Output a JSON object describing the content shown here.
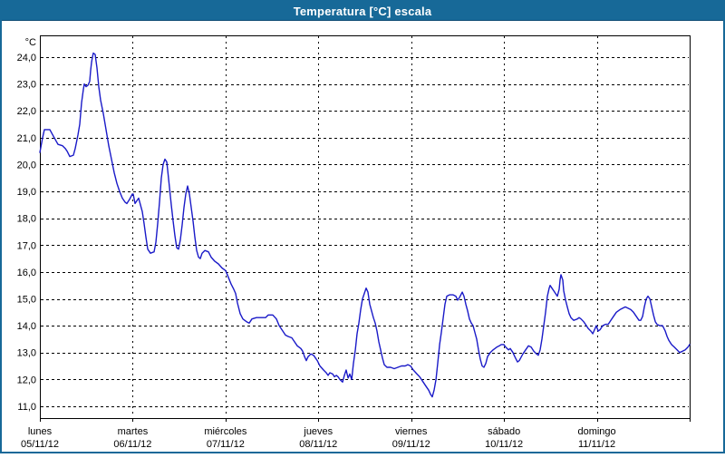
{
  "window": {
    "title": "Temperatura [°C] escala"
  },
  "colors": {
    "titlebar": "#176998",
    "frame": "#176998",
    "series_line": "#1a1ac8",
    "grid": "#000000",
    "plot_border": "#000000",
    "label_text": "#000000",
    "title_text": "#ffffff",
    "background": "#ffffff"
  },
  "chart_data": {
    "type": "line",
    "title": "Temperatura [°C] escala",
    "xlabel": "",
    "ylabel": "°C",
    "legend": "none",
    "grid": "dashed",
    "xlim_days": [
      0,
      7
    ],
    "ylim": [
      10.56,
      24.81
    ],
    "y_axis": {
      "unit": "°C",
      "values": [
        24,
        23,
        22,
        21,
        20,
        19,
        18,
        17,
        16,
        15,
        14,
        13,
        12,
        11
      ],
      "labels": [
        "24,0",
        "23,0",
        "22,0",
        "21,0",
        "20,0",
        "19,0",
        "18,0",
        "17,0",
        "16,0",
        "15,0",
        "14,0",
        "13,0",
        "12,0",
        "11,0"
      ]
    },
    "x_axis": {
      "days": [
        {
          "name": "lunes",
          "date": "05/11/12"
        },
        {
          "name": "martes",
          "date": "06/11/12"
        },
        {
          "name": "miércoles",
          "date": "07/11/12"
        },
        {
          "name": "jueves",
          "date": "08/11/12"
        },
        {
          "name": "viernes",
          "date": "09/11/12"
        },
        {
          "name": "sábado",
          "date": "10/11/12"
        },
        {
          "name": "domingo",
          "date": "11/11/12"
        }
      ]
    },
    "series": [
      {
        "name": "Temperatura",
        "x_unit": "days since lunes 05/11/12 00:00",
        "points": [
          [
            0,
            20.45
          ],
          [
            0.029,
            21.0
          ],
          [
            0.049,
            21.3
          ],
          [
            0.107,
            21.3
          ],
          [
            0.146,
            21.05
          ],
          [
            0.195,
            20.75
          ],
          [
            0.244,
            20.7
          ],
          [
            0.273,
            20.6
          ],
          [
            0.293,
            20.5
          ],
          [
            0.322,
            20.3
          ],
          [
            0.361,
            20.35
          ],
          [
            0.381,
            20.6
          ],
          [
            0.41,
            21.1
          ],
          [
            0.43,
            21.5
          ],
          [
            0.449,
            22.3
          ],
          [
            0.469,
            22.8
          ],
          [
            0.478,
            23.0
          ],
          [
            0.498,
            22.9
          ],
          [
            0.517,
            22.95
          ],
          [
            0.537,
            23.1
          ],
          [
            0.547,
            23.5
          ],
          [
            0.556,
            23.8
          ],
          [
            0.566,
            24.0
          ],
          [
            0.576,
            24.15
          ],
          [
            0.596,
            24.1
          ],
          [
            0.615,
            23.6
          ],
          [
            0.635,
            22.9
          ],
          [
            0.654,
            22.4
          ],
          [
            0.683,
            21.9
          ],
          [
            0.713,
            21.3
          ],
          [
            0.742,
            20.7
          ],
          [
            0.771,
            20.2
          ],
          [
            0.801,
            19.7
          ],
          [
            0.83,
            19.3
          ],
          [
            0.859,
            19.0
          ],
          [
            0.888,
            18.75
          ],
          [
            0.918,
            18.6
          ],
          [
            0.937,
            18.55
          ],
          [
            0.966,
            18.7
          ],
          [
            0.996,
            18.9
          ],
          [
            1.006,
            18.9
          ],
          [
            1.025,
            18.55
          ],
          [
            1.045,
            18.65
          ],
          [
            1.064,
            18.75
          ],
          [
            1.084,
            18.5
          ],
          [
            1.103,
            18.25
          ],
          [
            1.123,
            17.8
          ],
          [
            1.142,
            17.3
          ],
          [
            1.162,
            16.85
          ],
          [
            1.191,
            16.7
          ],
          [
            1.23,
            16.75
          ],
          [
            1.25,
            17.1
          ],
          [
            1.269,
            17.8
          ],
          [
            1.289,
            18.6
          ],
          [
            1.308,
            19.5
          ],
          [
            1.328,
            20.0
          ],
          [
            1.347,
            20.2
          ],
          [
            1.367,
            20.1
          ],
          [
            1.377,
            19.8
          ],
          [
            1.396,
            19.15
          ],
          [
            1.416,
            18.5
          ],
          [
            1.435,
            17.9
          ],
          [
            1.455,
            17.35
          ],
          [
            1.474,
            16.9
          ],
          [
            1.494,
            16.85
          ],
          [
            1.513,
            17.2
          ],
          [
            1.533,
            17.75
          ],
          [
            1.552,
            18.4
          ],
          [
            1.572,
            18.9
          ],
          [
            1.591,
            19.2
          ],
          [
            1.611,
            18.9
          ],
          [
            1.63,
            18.4
          ],
          [
            1.65,
            17.9
          ],
          [
            1.669,
            17.3
          ],
          [
            1.689,
            16.8
          ],
          [
            1.709,
            16.55
          ],
          [
            1.728,
            16.5
          ],
          [
            1.748,
            16.7
          ],
          [
            1.777,
            16.8
          ],
          [
            1.816,
            16.75
          ],
          [
            1.845,
            16.55
          ],
          [
            1.884,
            16.4
          ],
          [
            1.923,
            16.3
          ],
          [
            1.962,
            16.15
          ],
          [
            2.001,
            16.05
          ],
          [
            2.031,
            15.8
          ],
          [
            2.06,
            15.55
          ],
          [
            2.089,
            15.35
          ],
          [
            2.109,
            15.2
          ],
          [
            2.128,
            14.85
          ],
          [
            2.158,
            14.45
          ],
          [
            2.187,
            14.25
          ],
          [
            2.226,
            14.15
          ],
          [
            2.255,
            14.1
          ],
          [
            2.285,
            14.25
          ],
          [
            2.333,
            14.3
          ],
          [
            2.382,
            14.3
          ],
          [
            2.431,
            14.3
          ],
          [
            2.46,
            14.4
          ],
          [
            2.509,
            14.4
          ],
          [
            2.548,
            14.25
          ],
          [
            2.578,
            14.0
          ],
          [
            2.617,
            13.8
          ],
          [
            2.646,
            13.65
          ],
          [
            2.675,
            13.6
          ],
          [
            2.714,
            13.55
          ],
          [
            2.743,
            13.4
          ],
          [
            2.773,
            13.25
          ],
          [
            2.812,
            13.15
          ],
          [
            2.831,
            13.05
          ],
          [
            2.851,
            12.85
          ],
          [
            2.87,
            12.7
          ],
          [
            2.89,
            12.85
          ],
          [
            2.919,
            12.95
          ],
          [
            2.948,
            12.9
          ],
          [
            2.988,
            12.7
          ],
          [
            3.017,
            12.5
          ],
          [
            3.056,
            12.35
          ],
          [
            3.085,
            12.25
          ],
          [
            3.105,
            12.15
          ],
          [
            3.124,
            12.25
          ],
          [
            3.154,
            12.2
          ],
          [
            3.173,
            12.1
          ],
          [
            3.193,
            12.15
          ],
          [
            3.212,
            12.1
          ],
          [
            3.232,
            12.0
          ],
          [
            3.261,
            11.9
          ],
          [
            3.28,
            12.15
          ],
          [
            3.3,
            12.35
          ],
          [
            3.32,
            12.05
          ],
          [
            3.339,
            12.2
          ],
          [
            3.359,
            12.0
          ],
          [
            3.378,
            12.6
          ],
          [
            3.398,
            13.1
          ],
          [
            3.417,
            13.7
          ],
          [
            3.437,
            14.1
          ],
          [
            3.456,
            14.6
          ],
          [
            3.476,
            15.0
          ],
          [
            3.495,
            15.2
          ],
          [
            3.515,
            15.4
          ],
          [
            3.534,
            15.25
          ],
          [
            3.554,
            14.8
          ],
          [
            3.573,
            14.55
          ],
          [
            3.593,
            14.3
          ],
          [
            3.612,
            14.1
          ],
          [
            3.632,
            13.8
          ],
          [
            3.651,
            13.4
          ],
          [
            3.671,
            13.1
          ],
          [
            3.69,
            12.8
          ],
          [
            3.71,
            12.55
          ],
          [
            3.739,
            12.45
          ],
          [
            3.778,
            12.45
          ],
          [
            3.817,
            12.4
          ],
          [
            3.856,
            12.45
          ],
          [
            3.896,
            12.5
          ],
          [
            3.935,
            12.5
          ],
          [
            3.964,
            12.55
          ],
          [
            3.993,
            12.5
          ],
          [
            4.023,
            12.35
          ],
          [
            4.062,
            12.2
          ],
          [
            4.091,
            12.1
          ],
          [
            4.13,
            11.9
          ],
          [
            4.159,
            11.75
          ],
          [
            4.188,
            11.6
          ],
          [
            4.208,
            11.45
          ],
          [
            4.227,
            11.35
          ],
          [
            4.247,
            11.6
          ],
          [
            4.267,
            12.0
          ],
          [
            4.286,
            12.6
          ],
          [
            4.306,
            13.3
          ],
          [
            4.325,
            13.75
          ],
          [
            4.345,
            14.3
          ],
          [
            4.364,
            14.8
          ],
          [
            4.384,
            15.1
          ],
          [
            4.413,
            15.15
          ],
          [
            4.452,
            15.15
          ],
          [
            4.481,
            15.1
          ],
          [
            4.501,
            14.95
          ],
          [
            4.52,
            15.05
          ],
          [
            4.55,
            15.25
          ],
          [
            4.569,
            15.1
          ],
          [
            4.589,
            14.8
          ],
          [
            4.608,
            14.55
          ],
          [
            4.628,
            14.25
          ],
          [
            4.647,
            14.1
          ],
          [
            4.667,
            14.0
          ],
          [
            4.686,
            13.75
          ],
          [
            4.706,
            13.5
          ],
          [
            4.725,
            13.1
          ],
          [
            4.745,
            12.75
          ],
          [
            4.764,
            12.5
          ],
          [
            4.784,
            12.45
          ],
          [
            4.804,
            12.6
          ],
          [
            4.823,
            12.85
          ],
          [
            4.852,
            13.0
          ],
          [
            4.882,
            13.1
          ],
          [
            4.921,
            13.2
          ],
          [
            4.95,
            13.25
          ],
          [
            4.97,
            13.3
          ],
          [
            4.999,
            13.3
          ],
          [
            5.018,
            13.2
          ],
          [
            5.048,
            13.1
          ],
          [
            5.067,
            13.15
          ],
          [
            5.096,
            13.0
          ],
          [
            5.116,
            12.85
          ],
          [
            5.145,
            12.65
          ],
          [
            5.165,
            12.7
          ],
          [
            5.204,
            12.95
          ],
          [
            5.233,
            13.1
          ],
          [
            5.263,
            13.25
          ],
          [
            5.292,
            13.2
          ],
          [
            5.321,
            13.05
          ],
          [
            5.35,
            12.95
          ],
          [
            5.37,
            12.9
          ],
          [
            5.389,
            13.1
          ],
          [
            5.409,
            13.5
          ],
          [
            5.428,
            14.0
          ],
          [
            5.448,
            14.5
          ],
          [
            5.467,
            15.1
          ],
          [
            5.487,
            15.4
          ],
          [
            5.497,
            15.5
          ],
          [
            5.516,
            15.4
          ],
          [
            5.536,
            15.3
          ],
          [
            5.555,
            15.2
          ],
          [
            5.575,
            15.1
          ],
          [
            5.594,
            15.35
          ],
          [
            5.604,
            15.7
          ],
          [
            5.614,
            15.9
          ],
          [
            5.633,
            15.7
          ],
          [
            5.643,
            15.3
          ],
          [
            5.663,
            14.95
          ],
          [
            5.682,
            14.7
          ],
          [
            5.702,
            14.45
          ],
          [
            5.721,
            14.3
          ],
          [
            5.751,
            14.2
          ],
          [
            5.79,
            14.25
          ],
          [
            5.809,
            14.3
          ],
          [
            5.829,
            14.25
          ],
          [
            5.858,
            14.15
          ],
          [
            5.878,
            14.05
          ],
          [
            5.907,
            13.9
          ],
          [
            5.936,
            13.8
          ],
          [
            5.956,
            13.7
          ],
          [
            5.975,
            13.85
          ],
          [
            5.995,
            14.0
          ],
          [
            6.014,
            13.8
          ],
          [
            6.034,
            13.85
          ],
          [
            6.063,
            14.0
          ],
          [
            6.093,
            14.05
          ],
          [
            6.122,
            14.05
          ],
          [
            6.151,
            14.2
          ],
          [
            6.18,
            14.35
          ],
          [
            6.21,
            14.5
          ],
          [
            6.249,
            14.6
          ],
          [
            6.278,
            14.65
          ],
          [
            6.307,
            14.7
          ],
          [
            6.337,
            14.65
          ],
          [
            6.366,
            14.6
          ],
          [
            6.395,
            14.5
          ],
          [
            6.425,
            14.35
          ],
          [
            6.454,
            14.2
          ],
          [
            6.473,
            14.2
          ],
          [
            6.493,
            14.35
          ],
          [
            6.512,
            14.7
          ],
          [
            6.532,
            15.0
          ],
          [
            6.551,
            15.1
          ],
          [
            6.571,
            15.0
          ],
          [
            6.591,
            14.7
          ],
          [
            6.61,
            14.4
          ],
          [
            6.63,
            14.15
          ],
          [
            6.649,
            14.05
          ],
          [
            6.678,
            14.0
          ],
          [
            6.708,
            14.0
          ],
          [
            6.737,
            13.8
          ],
          [
            6.757,
            13.6
          ],
          [
            6.776,
            13.45
          ],
          [
            6.805,
            13.3
          ],
          [
            6.835,
            13.2
          ],
          [
            6.864,
            13.1
          ],
          [
            6.893,
            13.0
          ],
          [
            6.923,
            13.05
          ],
          [
            6.952,
            13.1
          ],
          [
            6.981,
            13.2
          ],
          [
            7.0,
            13.3
          ]
        ]
      }
    ]
  }
}
